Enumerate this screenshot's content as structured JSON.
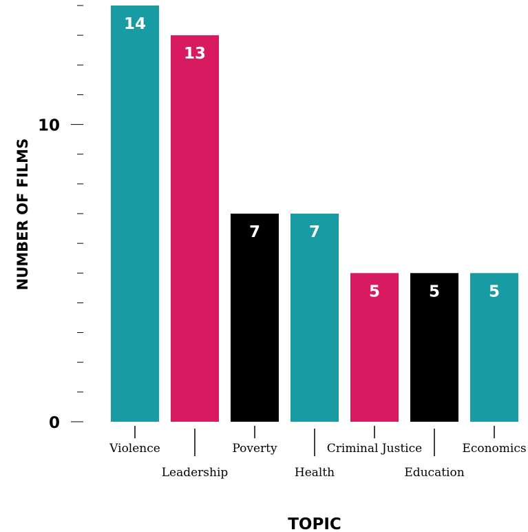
{
  "chart_data": {
    "type": "bar",
    "categories": [
      "Violence",
      "Leadership",
      "Poverty",
      "Health",
      "Criminal Justice",
      "Education",
      "Economics"
    ],
    "values": [
      14,
      13,
      7,
      7,
      5,
      5,
      5
    ],
    "bar_colors": [
      "#189ba3",
      "#d81b60",
      "#000000",
      "#189ba3",
      "#d81b60",
      "#000000",
      "#189ba3"
    ],
    "title": "",
    "xlabel": "TOPIC",
    "ylabel": "NUMBER OF FILMS",
    "ylim": [
      0,
      14
    ],
    "y_tick_labels": [
      {
        "value": 0,
        "label": "0"
      },
      {
        "value": 10,
        "label": "10"
      }
    ],
    "y_minor_step": 1,
    "grid": false,
    "value_label_color": "#ffffff"
  }
}
